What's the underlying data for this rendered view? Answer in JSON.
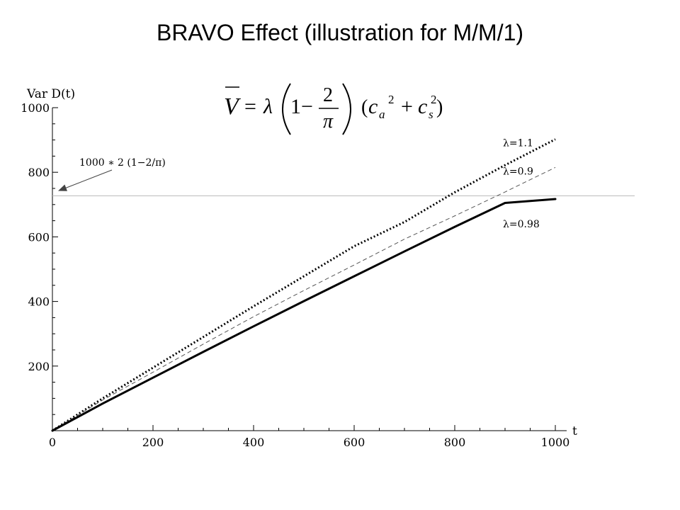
{
  "slide": {
    "title": "BRAVO Effect (illustration for M/M/1)"
  },
  "formula": {
    "lhs": "V",
    "equals": "=",
    "lambda": "λ",
    "one_minus": "1−",
    "frac_num": "2",
    "frac_den": "π",
    "ca": "c",
    "ca_sub": "a",
    "sq1": "2",
    "plus": "+",
    "cs": "c",
    "cs_sub": "s",
    "sq2": "2"
  },
  "chart_data": {
    "type": "line",
    "title": "",
    "xlabel": "t",
    "ylabel": "Var D(t)",
    "xlim": [
      0,
      1000
    ],
    "ylim": [
      0,
      1000
    ],
    "x_ticks": [
      0,
      200,
      400,
      600,
      800,
      1000
    ],
    "y_ticks": [
      200,
      400,
      600,
      800,
      1000
    ],
    "x_minor_step": 50,
    "y_minor_step": 50,
    "grid": false,
    "reference_line": {
      "y": 727,
      "color": "#bbbbbb"
    },
    "annotation": {
      "text": "1000 ∗ 2 (1−2/π)",
      "target": {
        "x": 0,
        "y": 727
      },
      "text_anchor_data": {
        "x": 55,
        "y": 825
      }
    },
    "series": [
      {
        "name": "λ=1.1",
        "style": "dotted",
        "color": "#000000",
        "x": [
          0,
          100,
          200,
          300,
          400,
          500,
          600,
          700,
          800,
          900,
          1000
        ],
        "y": [
          0,
          100,
          195,
          290,
          385,
          478,
          571,
          646,
          738,
          822,
          902
        ]
      },
      {
        "name": "λ=0.9",
        "style": "dashed",
        "color": "#555555",
        "x": [
          0,
          100,
          200,
          300,
          400,
          500,
          600,
          700,
          800,
          900,
          1000
        ],
        "y": [
          0,
          95,
          181,
          268,
          353,
          434,
          513,
          593,
          665,
          739,
          815
        ]
      },
      {
        "name": "λ=0.98",
        "style": "solid",
        "color": "#000000",
        "x": [
          0,
          100,
          200,
          300,
          400,
          500,
          600,
          700,
          800,
          900,
          1000
        ],
        "y": [
          0,
          84,
          164,
          244,
          323,
          401,
          478,
          555,
          631,
          705,
          717
        ]
      }
    ]
  }
}
